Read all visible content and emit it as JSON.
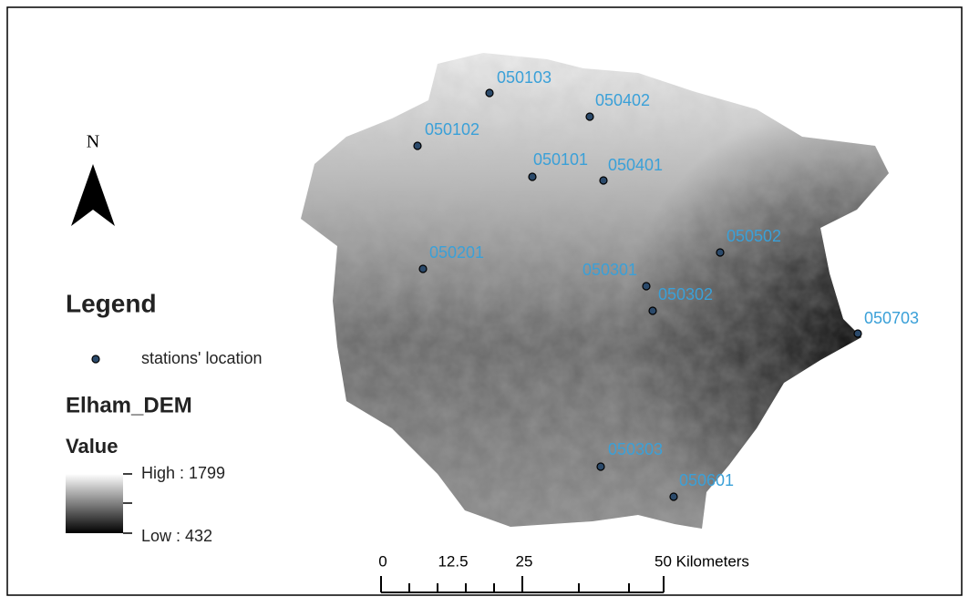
{
  "north_arrow": {
    "label": "N"
  },
  "legend": {
    "title": "Legend",
    "stations_label": "stations' location",
    "layer_name": "Elham_DEM",
    "field": "Value",
    "high": "High : 1799",
    "low": "Low : 432"
  },
  "scale_bar": {
    "labels": [
      "0",
      "12.5",
      "25",
      "50 Kilometers"
    ]
  },
  "stations": [
    "050103",
    "050402",
    "050102",
    "050101",
    "050401",
    "050502",
    "050201",
    "050301",
    "050302",
    "050703",
    "050303",
    "050601"
  ]
}
